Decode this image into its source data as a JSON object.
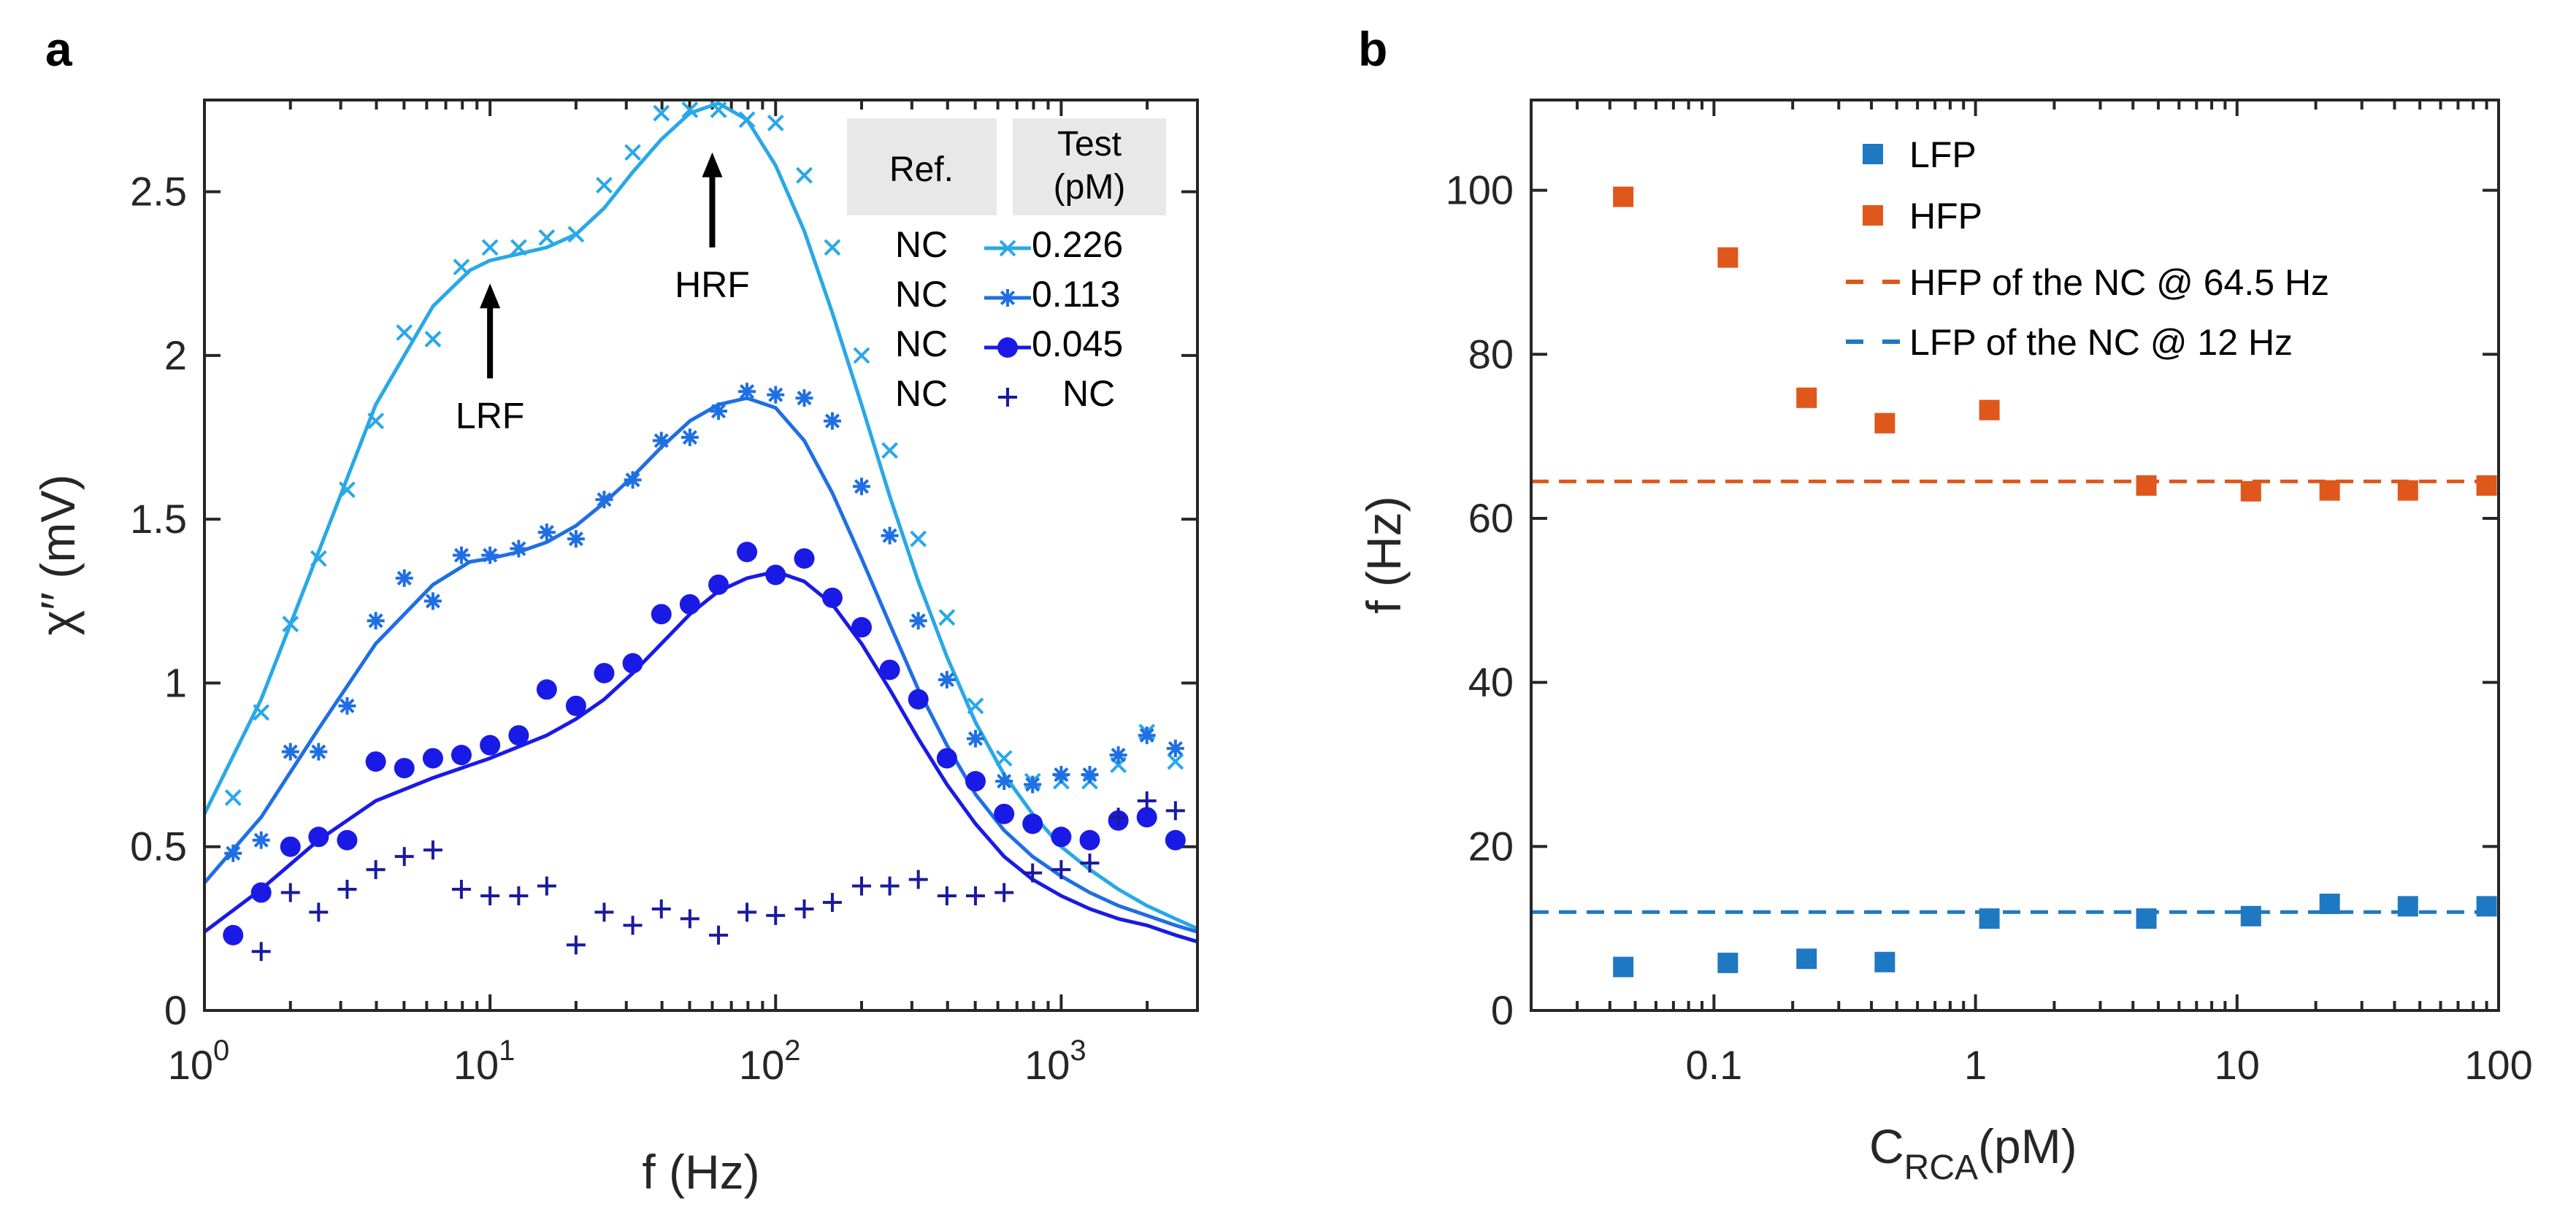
{
  "chart_data": [
    {
      "panel": "a",
      "type": "scatter",
      "xscale": "log",
      "xlabel": "f (Hz)",
      "ylabel": "χ′′ (mV)",
      "xlim": [
        1,
        3000
      ],
      "ylim": [
        0,
        2.78
      ],
      "yticks": [
        0,
        0.5,
        1,
        1.5,
        2,
        2.5
      ],
      "ytick_labels": [
        "0",
        "0.5",
        "1",
        "1.5",
        "2",
        "2.5"
      ],
      "xticks": [
        1,
        10,
        100,
        1000
      ],
      "xtick_bases": [
        "10",
        "10",
        "10",
        "10"
      ],
      "xtick_exps": [
        "0",
        "1",
        "2",
        "3"
      ],
      "annotations": [
        {
          "text": "LRF",
          "x": 10,
          "y_tip": 2.22,
          "y_tail": 1.93
        },
        {
          "text": "HRF",
          "x": 60,
          "y_tip": 2.62,
          "y_tail": 2.33
        }
      ],
      "legend": {
        "header_ref": "Ref.",
        "header_test_1": "Test",
        "header_test_2": "(pM)",
        "rows": [
          {
            "ref": "NC",
            "test": "0.226"
          },
          {
            "ref": "NC",
            "test": "0.113"
          },
          {
            "ref": "NC",
            "test": "0.045"
          },
          {
            "ref": "NC",
            "test": "NC"
          }
        ]
      },
      "series": [
        {
          "name": "0.226",
          "marker": "x",
          "color": "#29A8E6",
          "x": [
            1.26,
            1.58,
            2.0,
            2.51,
            3.16,
            3.98,
            5.01,
            6.31,
            7.94,
            10.0,
            12.6,
            15.8,
            20.0,
            25.1,
            31.6,
            39.8,
            50.1,
            63.1,
            79.4,
            100,
            126,
            158,
            200,
            251,
            316,
            398,
            501,
            631,
            794,
            1000,
            1259,
            1585,
            1995,
            2512
          ],
          "y": [
            0.65,
            0.91,
            1.18,
            1.38,
            1.59,
            1.8,
            2.07,
            2.05,
            2.27,
            2.33,
            2.33,
            2.36,
            2.37,
            2.52,
            2.62,
            2.74,
            2.75,
            2.75,
            2.72,
            2.71,
            2.55,
            2.33,
            2.0,
            1.71,
            1.44,
            1.2,
            0.93,
            0.77,
            0.7,
            0.7,
            0.7,
            0.75,
            0.85,
            0.76
          ],
          "fit_x": [
            1,
            1.58,
            2.51,
            3.98,
            6.31,
            8.5,
            10,
            12.6,
            15.8,
            20,
            25.1,
            31.6,
            39.8,
            50.1,
            63.1,
            79.4,
            100,
            126,
            158,
            200,
            251,
            316,
            398,
            501,
            631,
            794,
            1000,
            1259,
            1585,
            1995,
            2512,
            3000
          ],
          "fit_y": [
            0.6,
            0.95,
            1.4,
            1.85,
            2.15,
            2.26,
            2.29,
            2.31,
            2.33,
            2.37,
            2.45,
            2.56,
            2.66,
            2.74,
            2.77,
            2.72,
            2.58,
            2.38,
            2.13,
            1.85,
            1.57,
            1.31,
            1.08,
            0.88,
            0.72,
            0.6,
            0.5,
            0.43,
            0.37,
            0.32,
            0.28,
            0.25
          ]
        },
        {
          "name": "0.113",
          "marker": "asterisk",
          "color": "#1F6FE3",
          "x": [
            1.26,
            1.58,
            2.0,
            2.51,
            3.16,
            3.98,
            5.01,
            6.31,
            7.94,
            10.0,
            12.6,
            15.8,
            20.0,
            25.1,
            31.6,
            39.8,
            50.1,
            63.1,
            79.4,
            100,
            126,
            158,
            200,
            251,
            316,
            398,
            501,
            631,
            794,
            1000,
            1259,
            1585,
            1995,
            2512
          ],
          "y": [
            0.48,
            0.52,
            0.79,
            0.79,
            0.93,
            1.19,
            1.32,
            1.25,
            1.39,
            1.39,
            1.41,
            1.46,
            1.44,
            1.56,
            1.62,
            1.74,
            1.75,
            1.83,
            1.89,
            1.88,
            1.87,
            1.8,
            1.6,
            1.45,
            1.19,
            1.01,
            0.83,
            0.7,
            0.69,
            0.72,
            0.72,
            0.78,
            0.84,
            0.8
          ],
          "fit_x": [
            1,
            1.58,
            2.51,
            3.98,
            6.31,
            8.5,
            10,
            12.6,
            15.8,
            20,
            25.1,
            31.6,
            39.8,
            50.1,
            63.1,
            79.4,
            100,
            126,
            158,
            200,
            251,
            316,
            398,
            501,
            631,
            794,
            1000,
            1259,
            1585,
            1995,
            2512,
            3000
          ],
          "fit_y": [
            0.39,
            0.59,
            0.86,
            1.12,
            1.3,
            1.37,
            1.38,
            1.4,
            1.43,
            1.48,
            1.55,
            1.63,
            1.72,
            1.8,
            1.85,
            1.87,
            1.84,
            1.74,
            1.58,
            1.38,
            1.18,
            0.98,
            0.81,
            0.66,
            0.55,
            0.47,
            0.41,
            0.36,
            0.32,
            0.29,
            0.26,
            0.24
          ]
        },
        {
          "name": "0.045",
          "marker": "circle",
          "color": "#1A1AE6",
          "x": [
            1.26,
            1.58,
            2.0,
            2.51,
            3.16,
            3.98,
            5.01,
            6.31,
            7.94,
            10.0,
            12.6,
            15.8,
            20.0,
            25.1,
            31.6,
            39.8,
            50.1,
            63.1,
            79.4,
            100,
            126,
            158,
            200,
            251,
            316,
            398,
            501,
            631,
            794,
            1000,
            1259,
            1585,
            1995,
            2512
          ],
          "y": [
            0.23,
            0.36,
            0.5,
            0.53,
            0.52,
            0.76,
            0.74,
            0.77,
            0.78,
            0.81,
            0.84,
            0.98,
            0.93,
            1.03,
            1.06,
            1.21,
            1.24,
            1.3,
            1.4,
            1.33,
            1.38,
            1.26,
            1.17,
            1.04,
            0.95,
            0.77,
            0.7,
            0.6,
            0.57,
            0.53,
            0.52,
            0.58,
            0.59,
            0.52
          ],
          "fit_x": [
            1,
            1.58,
            2.51,
            3.98,
            6.31,
            10,
            15.8,
            20,
            25.1,
            31.6,
            39.8,
            50.1,
            63.1,
            79.4,
            100,
            126,
            158,
            200,
            251,
            316,
            398,
            501,
            631,
            794,
            1000,
            1259,
            1585,
            1995,
            2512,
            3000
          ],
          "fit_y": [
            0.24,
            0.37,
            0.52,
            0.64,
            0.71,
            0.77,
            0.84,
            0.89,
            0.95,
            1.03,
            1.12,
            1.21,
            1.28,
            1.32,
            1.34,
            1.31,
            1.24,
            1.12,
            0.98,
            0.83,
            0.69,
            0.57,
            0.47,
            0.4,
            0.35,
            0.31,
            0.28,
            0.26,
            0.23,
            0.21
          ]
        },
        {
          "name": "NC",
          "marker": "plus",
          "color": "#1A1A9E",
          "x": [
            1.58,
            2.0,
            2.51,
            3.16,
            3.98,
            5.01,
            6.31,
            7.94,
            10.0,
            12.6,
            15.8,
            20.0,
            25.1,
            31.6,
            39.8,
            50.1,
            63.1,
            79.4,
            100,
            126,
            158,
            200,
            251,
            316,
            398,
            501,
            631,
            794,
            1000,
            1259,
            1585,
            1995,
            2512
          ],
          "y": [
            0.18,
            0.36,
            0.3,
            0.37,
            0.43,
            0.47,
            0.49,
            0.37,
            0.35,
            0.35,
            0.38,
            0.2,
            0.3,
            0.26,
            0.31,
            0.28,
            0.23,
            0.3,
            0.29,
            0.31,
            0.33,
            0.38,
            0.38,
            0.4,
            0.35,
            0.35,
            0.36,
            0.42,
            0.43,
            0.45,
            0.59,
            0.64,
            0.61
          ]
        }
      ]
    },
    {
      "panel": "b",
      "type": "scatter",
      "xscale": "log",
      "xlabel_main": "C",
      "xlabel_sub": "RCA",
      "xlabel_unit": "(pM)",
      "ylabel": "f (Hz)",
      "xlim": [
        0.02,
        100
      ],
      "ylim": [
        0,
        111
      ],
      "yticks": [
        0,
        20,
        40,
        60,
        80,
        100
      ],
      "ytick_labels": [
        "0",
        "20",
        "40",
        "60",
        "80",
        "100"
      ],
      "xticks": [
        0.1,
        1,
        10,
        100
      ],
      "xtick_labels": [
        "0.1",
        "1",
        "10",
        "100"
      ],
      "legend": [
        {
          "label": "LFP",
          "kind": "square",
          "color": "#1F78C2"
        },
        {
          "label": "HFP",
          "kind": "square",
          "color": "#E0571B"
        },
        {
          "label": "HFP of the NC @ 64.5 Hz",
          "kind": "dash",
          "color": "#E0571B"
        },
        {
          "label": "LFP of the NC @ 12 Hz",
          "kind": "dash",
          "color": "#1F78C2"
        }
      ],
      "series": [
        {
          "name": "LFP",
          "color": "#1F78C2",
          "x": [
            0.045,
            0.113,
            0.226,
            0.45,
            1.13,
            4.5,
            11.3,
            22.6,
            45,
            90
          ],
          "y": [
            5.3,
            5.8,
            6.3,
            5.9,
            11.2,
            11.2,
            11.5,
            13.0,
            12.7,
            12.7
          ]
        },
        {
          "name": "HFP",
          "color": "#E0571B",
          "x": [
            0.045,
            0.113,
            0.226,
            0.45,
            1.13,
            4.5,
            11.3,
            22.6,
            45,
            90
          ],
          "y": [
            99.2,
            91.8,
            74.7,
            71.6,
            73.2,
            64.0,
            63.3,
            63.4,
            63.4,
            64.0
          ]
        }
      ],
      "reference_lines": [
        {
          "name": "HFP of the NC",
          "y": 64.5,
          "color": "#E0571B"
        },
        {
          "name": "LFP of the NC",
          "y": 12.0,
          "color": "#1F78C2"
        }
      ]
    }
  ],
  "panels": {
    "a": {
      "label": "a",
      "xlabel": "f (Hz)",
      "ylabel": "χ′′ (mV)",
      "annot_lrf": "LRF",
      "annot_hrf": "HRF",
      "legend_header_ref": "Ref.",
      "legend_header_test_1": "Test",
      "legend_header_test_2": "(pM)",
      "legend_rows": [
        {
          "ref": "NC",
          "test": "0.226"
        },
        {
          "ref": "NC",
          "test": "0.113"
        },
        {
          "ref": "NC",
          "test": "0.045"
        },
        {
          "ref": "NC",
          "test": "NC"
        }
      ]
    },
    "b": {
      "label": "b",
      "ylabel": "f (Hz)",
      "xlabel_main": "C",
      "xlabel_sub": "RCA",
      "xlabel_unit": "(pM)",
      "legend_lfp": "LFP",
      "legend_hfp": "HFP",
      "legend_hfp_nc": "HFP of the NC @ 64.5 Hz",
      "legend_lfp_nc": "LFP of the NC @ 12 Hz"
    }
  }
}
